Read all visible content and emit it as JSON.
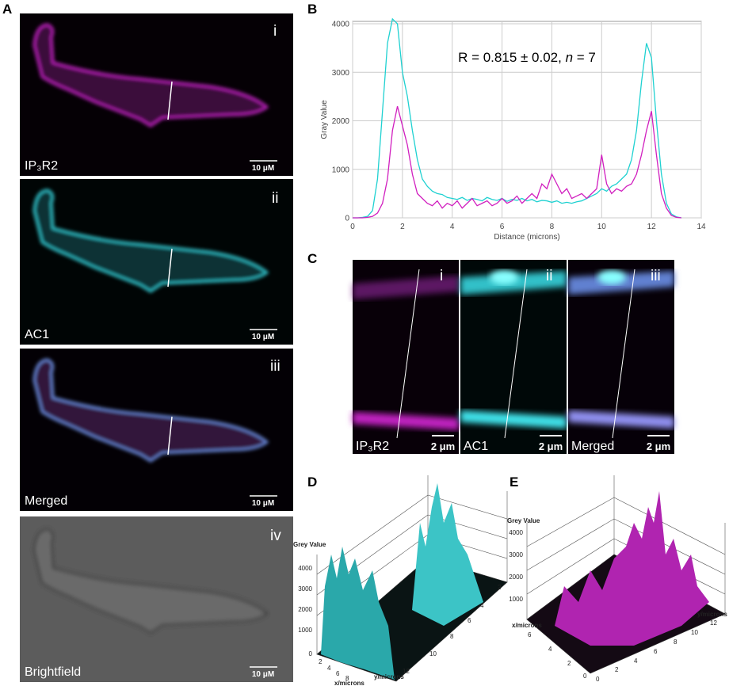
{
  "panel_letters": [
    "A",
    "B",
    "C",
    "D",
    "E"
  ],
  "panel_a": [
    {
      "numeral": "i",
      "label": "IP₃R2",
      "scale": "10 μM"
    },
    {
      "numeral": "ii",
      "label": "AC1",
      "scale": "10 μM"
    },
    {
      "numeral": "iii",
      "label": "Merged",
      "scale": "10 μM"
    },
    {
      "numeral": "iv",
      "label": "Brightfield",
      "scale": "10 μM"
    }
  ],
  "chart_data": {
    "type": "line",
    "xlabel": "Distance (microns)",
    "ylabel": "Gray Value",
    "annotation": [
      "R = 0.815 ± 0.02, ",
      "n",
      " = 7"
    ],
    "xlim": [
      0,
      14
    ],
    "xticks": [
      0,
      2,
      4,
      6,
      8,
      10,
      12,
      14
    ],
    "ylim": [
      0,
      4050
    ],
    "yticks": [
      0,
      1000,
      2000,
      3000,
      4000
    ],
    "grid": true,
    "x": [
      0,
      0.2,
      0.4,
      0.6,
      0.8,
      1,
      1.2,
      1.4,
      1.6,
      1.8,
      2,
      2.2,
      2.4,
      2.6,
      2.8,
      3,
      3.2,
      3.4,
      3.6,
      3.8,
      4,
      4.2,
      4.4,
      4.6,
      4.8,
      5,
      5.2,
      5.4,
      5.6,
      5.8,
      6,
      6.2,
      6.4,
      6.6,
      6.8,
      7,
      7.2,
      7.4,
      7.6,
      7.8,
      8,
      8.2,
      8.4,
      8.6,
      8.8,
      9,
      9.2,
      9.4,
      9.6,
      9.8,
      10,
      10.2,
      10.4,
      10.6,
      10.8,
      11,
      11.2,
      11.4,
      11.6,
      11.8,
      12,
      12.2,
      12.4,
      12.6,
      12.8,
      13,
      13.2
    ],
    "series": [
      {
        "color": "#1fd1d1",
        "values": [
          0,
          0,
          10,
          30,
          150,
          800,
          2200,
          3600,
          4100,
          4000,
          3000,
          2500,
          1800,
          1200,
          800,
          650,
          550,
          500,
          480,
          420,
          400,
          380,
          420,
          360,
          400,
          380,
          350,
          420,
          380,
          360,
          400,
          340,
          380,
          360,
          400,
          350,
          380,
          330,
          360,
          350,
          320,
          350,
          300,
          320,
          300,
          330,
          350,
          400,
          450,
          500,
          600,
          550,
          650,
          700,
          800,
          900,
          1200,
          1800,
          2800,
          3600,
          3300,
          2000,
          900,
          300,
          80,
          20,
          0
        ]
      },
      {
        "color": "#d11fbf",
        "values": [
          0,
          0,
          0,
          10,
          30,
          100,
          300,
          800,
          1800,
          2300,
          1900,
          1500,
          900,
          500,
          400,
          300,
          250,
          350,
          200,
          300,
          250,
          350,
          200,
          300,
          400,
          250,
          300,
          350,
          250,
          300,
          400,
          300,
          350,
          450,
          300,
          400,
          500,
          400,
          700,
          600,
          900,
          700,
          500,
          600,
          400,
          450,
          500,
          400,
          500,
          600,
          1300,
          700,
          500,
          600,
          550,
          650,
          700,
          900,
          1300,
          1800,
          2200,
          1300,
          500,
          200,
          50,
          10,
          0
        ]
      }
    ]
  },
  "panel_c": [
    {
      "numeral": "i",
      "label": "IP₃R2",
      "scale": "2 μm"
    },
    {
      "numeral": "ii",
      "label": "AC1",
      "scale": "2 μm"
    },
    {
      "numeral": "iii",
      "label": "Merged",
      "scale": "2 μm"
    }
  ],
  "panel_d": {
    "z_label": "Grey Value",
    "z_ticks": [
      4000,
      3000,
      2000,
      1000,
      0
    ],
    "x_label": "x/microns",
    "x_ticks": [
      2,
      4,
      6,
      8
    ],
    "y_label": "y/microns",
    "y_ticks": [
      12,
      10,
      8,
      6,
      4,
      2
    ]
  },
  "panel_e": {
    "z_label": "Grey Value",
    "z_ticks": [
      4000,
      3000,
      2000,
      1000
    ],
    "x_label": "x/microns",
    "x_ticks": [
      6,
      4,
      2,
      0
    ],
    "y_label": "y/microns",
    "y_ticks": [
      0,
      2,
      4,
      6,
      8,
      10,
      12
    ]
  }
}
